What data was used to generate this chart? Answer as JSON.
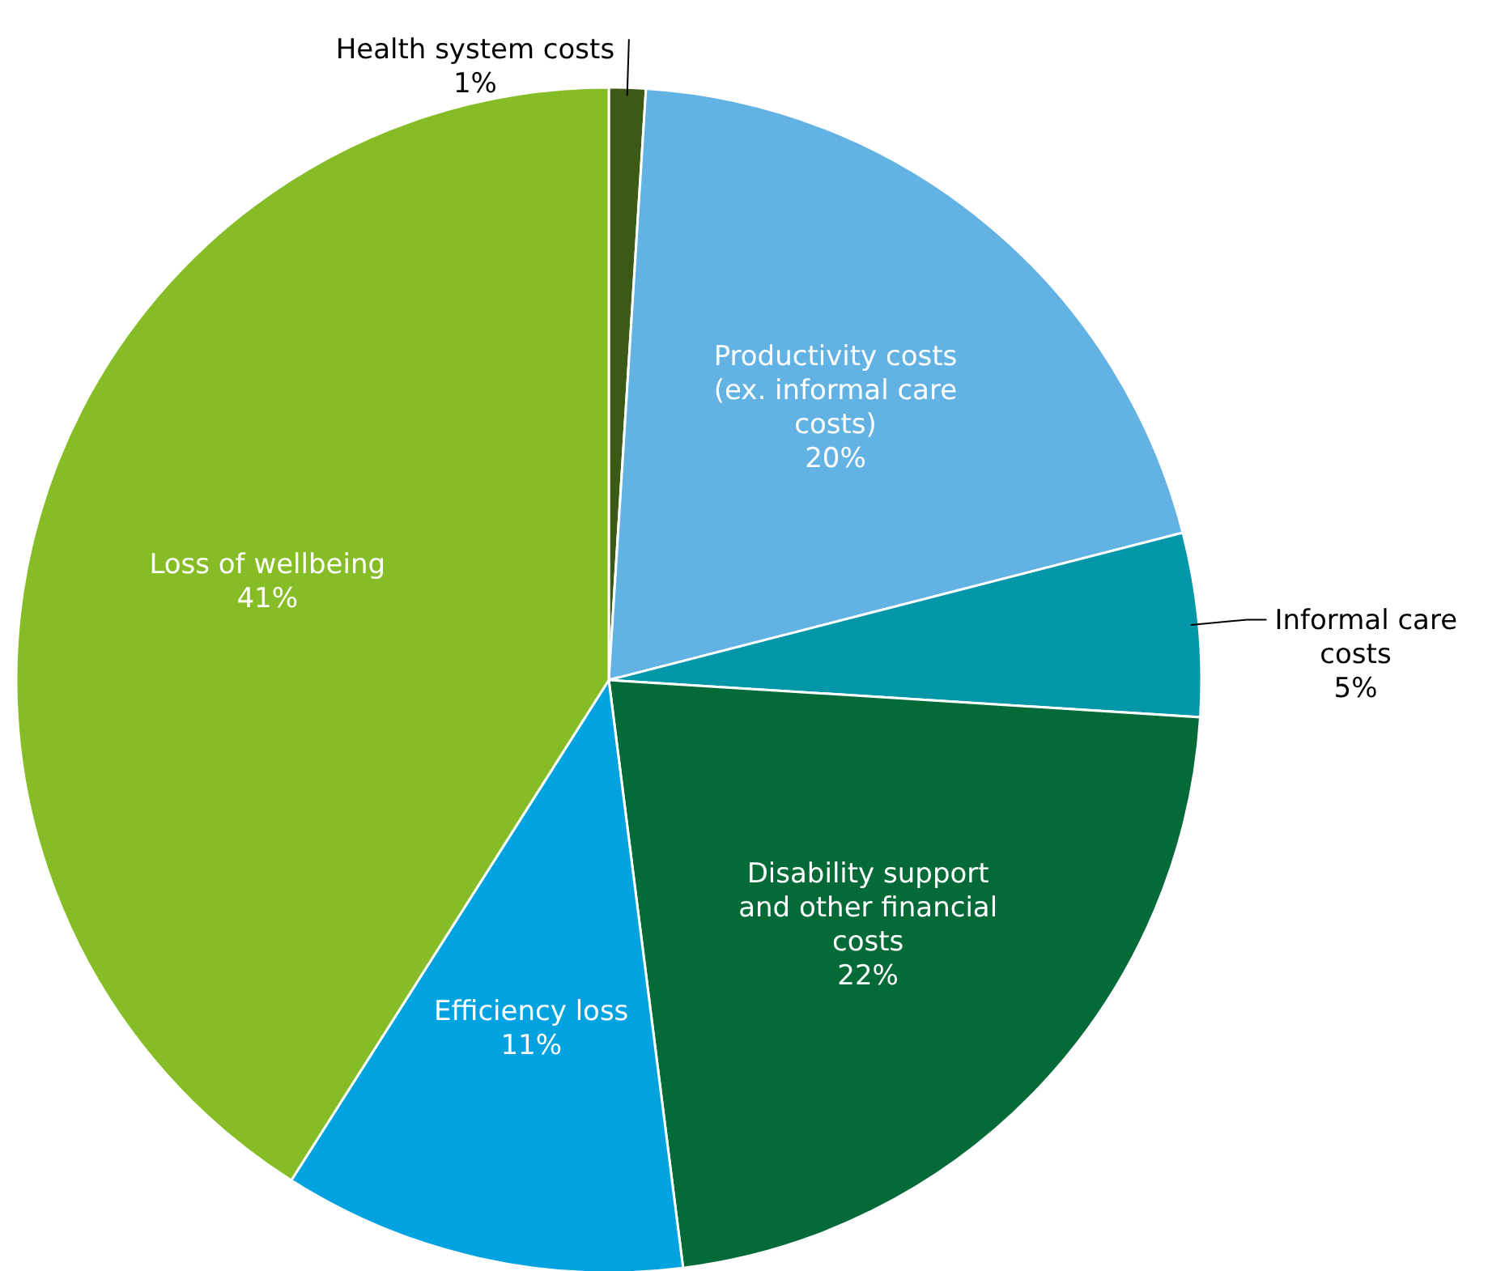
{
  "chart_data": {
    "type": "pie",
    "categories": [
      "Health system costs",
      "Productivity costs (ex. informal care costs)",
      "Informal care costs",
      "Disability support and other financial costs",
      "Efficiency loss",
      "Loss of wellbeing"
    ],
    "values": [
      1,
      20,
      5,
      22,
      11,
      41
    ],
    "colors": [
      "#3b5a16",
      "#62b3e4",
      "#0097a9",
      "#046a38",
      "#00a3e0",
      "#86bc25"
    ],
    "value_labels": [
      "1%",
      "20%",
      "5%",
      "22%",
      "11%",
      "41%"
    ],
    "legend": false
  }
}
